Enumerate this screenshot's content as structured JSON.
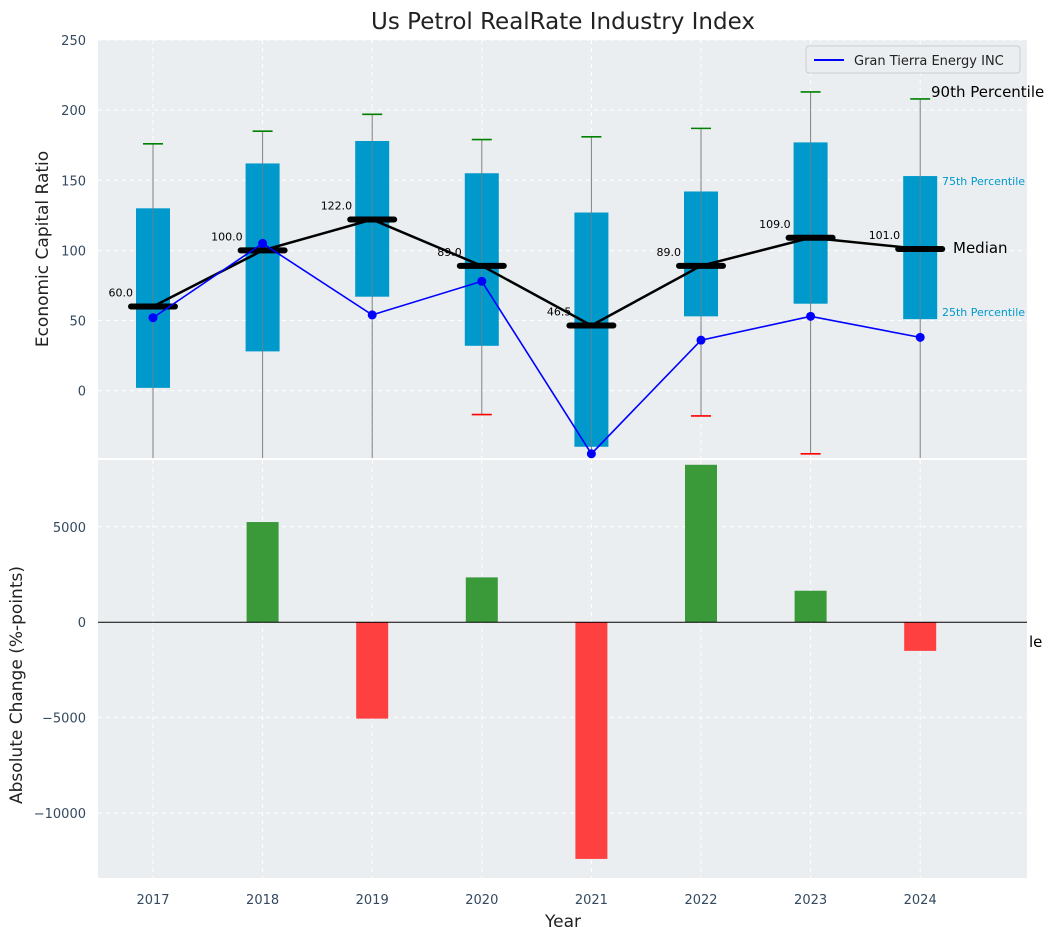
{
  "chart_data": [
    {
      "type": "box",
      "title": "Us Petrol RealRate Industry Index",
      "ylabel": "Economic Capital Ratio",
      "ylim": [
        -48,
        250
      ],
      "yticks": [
        0,
        50,
        100,
        150,
        200,
        250
      ],
      "years": [
        "2017",
        "2018",
        "2019",
        "2020",
        "2021",
        "2022",
        "2023",
        "2024"
      ],
      "p10": [
        null,
        null,
        null,
        -17,
        null,
        -18,
        -45,
        null
      ],
      "p25": [
        2,
        28,
        67,
        32,
        -40,
        53,
        62,
        51
      ],
      "median": [
        60.0,
        100.0,
        122.0,
        89.0,
        46.5,
        89.0,
        109.0,
        101.0
      ],
      "median_labels": [
        "60.0",
        "100.0",
        "122.0",
        "89.0",
        "46.5",
        "89.0",
        "109.0",
        "101.0"
      ],
      "p75": [
        130,
        162,
        178,
        155,
        127,
        142,
        177,
        153
      ],
      "p90": [
        176,
        185,
        197,
        179,
        181,
        187,
        213,
        208
      ],
      "series": [
        {
          "name": "Gran Tierra Energy INC",
          "values": [
            52,
            105,
            54,
            78,
            -45,
            36,
            53,
            38
          ],
          "color": "#0000ff"
        }
      ],
      "legend": "top-right",
      "annotations": {
        "p90": "90th Percentile",
        "p75": "75th Percentile",
        "median": "Median",
        "p25": "25th Percentile",
        "p10_partial": "le"
      },
      "colors": {
        "box": "#0099cc",
        "median_line": "#000000",
        "whisker_top": "#008000",
        "whisker_bottom": "#ff0000",
        "whisker_line": "#808080",
        "plot_bg": "#eaeef0"
      },
      "grid": true
    },
    {
      "type": "bar",
      "ylabel": "Absolute Change (%-points)",
      "xlabel": "Year",
      "categories": [
        "2017",
        "2018",
        "2019",
        "2020",
        "2021",
        "2022",
        "2023",
        "2024"
      ],
      "values": [
        0,
        5250,
        -5050,
        2350,
        -12400,
        8250,
        1650,
        -1500
      ],
      "ylim": [
        -13400,
        8500
      ],
      "yticks": [
        5000,
        0,
        -5000,
        -10000
      ],
      "ytick_labels": [
        "5000",
        "0",
        "−5000",
        "−10000"
      ],
      "colors": {
        "positive": "#3a9a3a",
        "negative": "#ff4040"
      },
      "grid": true
    }
  ]
}
